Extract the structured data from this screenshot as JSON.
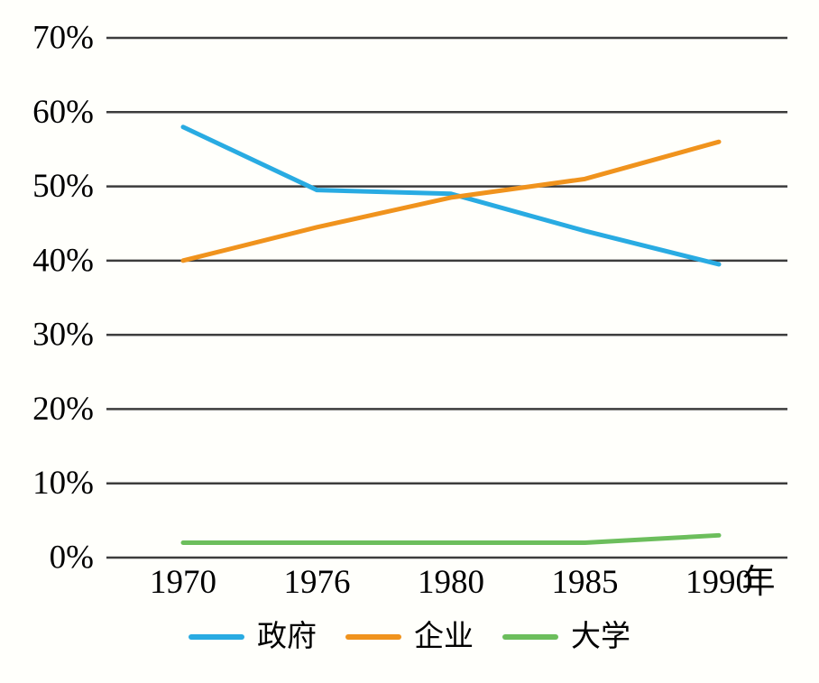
{
  "page": {
    "background_color": "#FFFFFB",
    "text_color": "#000000",
    "gridline_color": "#3C3C3C"
  },
  "chart_data": {
    "type": "line",
    "title": "",
    "categories": [
      "1970",
      "1976",
      "1980",
      "1985",
      "1990"
    ],
    "x_unit_label": "年",
    "xlabel": "年",
    "ylabel": "",
    "ylim": [
      0,
      70
    ],
    "y_tick_step": 10,
    "y_ticks": [
      "0%",
      "10%",
      "20%",
      "30%",
      "40%",
      "50%",
      "60%",
      "70%"
    ],
    "grid": true,
    "legend_position": "bottom",
    "series": [
      {
        "id": "government",
        "name": "政府",
        "color": "#29ABE2",
        "values": [
          58,
          49.5,
          49,
          44,
          39.5
        ]
      },
      {
        "id": "enterprise",
        "name": "企业",
        "color": "#F0931D",
        "values": [
          40,
          44.5,
          48.5,
          51,
          56
        ]
      },
      {
        "id": "university",
        "name": "大学",
        "color": "#6CBE5C",
        "values": [
          2,
          2,
          2,
          2,
          3
        ]
      }
    ]
  }
}
